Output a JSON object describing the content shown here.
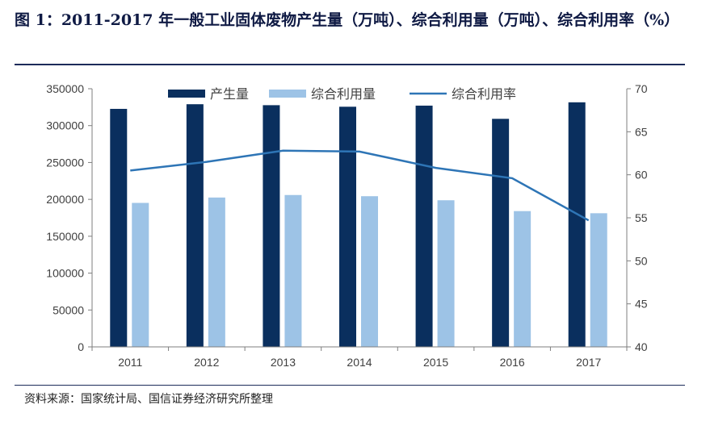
{
  "figure": {
    "title": "图 1：2011-2017 年一般工业固体废物产生量（万吨）、综合利用量（万吨）、综合利用率（%）",
    "source": "资料来源：国家统计局、国信证券经济研究所整理"
  },
  "chart_data": {
    "type": "bar",
    "categories": [
      "2011",
      "2012",
      "2013",
      "2014",
      "2015",
      "2016",
      "2017"
    ],
    "series": [
      {
        "name": "产生量",
        "type": "bar",
        "axis": "left",
        "color": "#0a2f5e",
        "values": [
          322700,
          329000,
          327700,
          325600,
          327100,
          309200,
          331600
        ]
      },
      {
        "name": "综合利用量",
        "type": "bar",
        "axis": "left",
        "color": "#9dc3e6",
        "values": [
          195200,
          202500,
          205900,
          204300,
          198800,
          184100,
          181200
        ]
      },
      {
        "name": "综合利用率",
        "type": "line",
        "axis": "right",
        "color": "#2e75b6",
        "values": [
          60.5,
          61.5,
          62.8,
          62.7,
          60.8,
          59.6,
          54.7
        ]
      }
    ],
    "y_left": {
      "min": 0,
      "max": 350000,
      "step": 50000
    },
    "y_right": {
      "min": 40,
      "max": 70,
      "step": 5
    },
    "legend_position": "top",
    "grid": false
  }
}
